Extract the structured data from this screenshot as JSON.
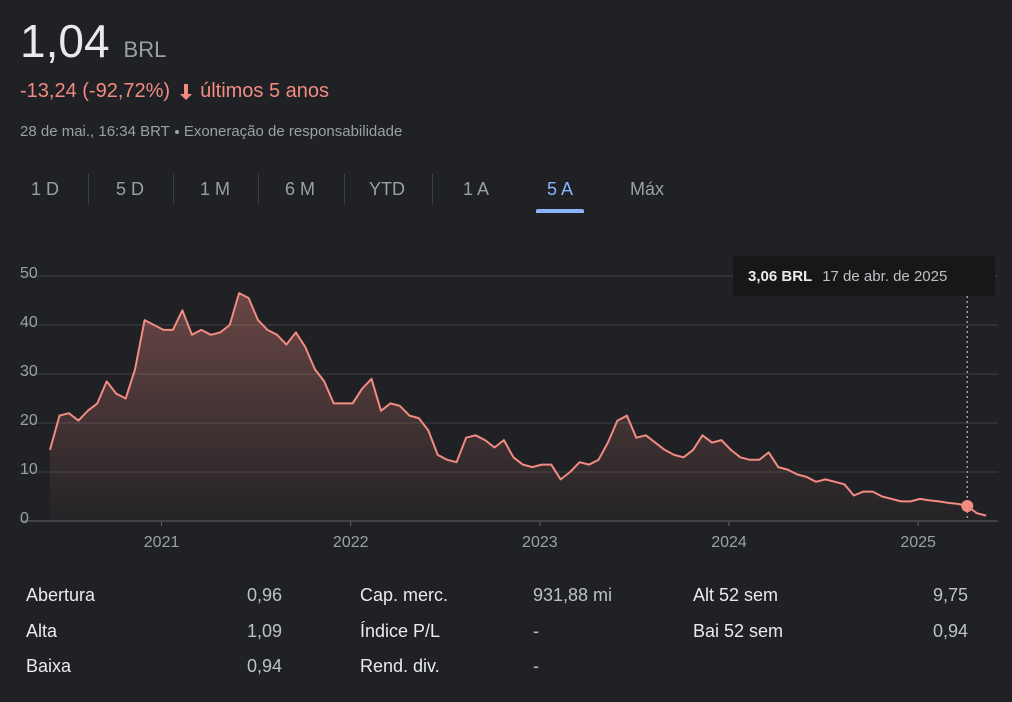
{
  "header": {
    "price": "1,04",
    "currency": "BRL",
    "change": "-13,24 (-92,72%)",
    "period": "últimos 5 anos",
    "timestamp": "28 de mai., 16:34 BRT",
    "disclaimer": "Exoneração de responsabilidade"
  },
  "tabs": [
    "1 D",
    "5 D",
    "1 M",
    "6 M",
    "YTD",
    "1 A",
    "5 A",
    "Máx"
  ],
  "active_tab": "5 A",
  "chart_data": {
    "type": "line",
    "color": "#f28b82",
    "x": [
      2020.41,
      2020.46,
      2020.51,
      2020.56,
      2020.61,
      2020.66,
      2020.71,
      2020.76,
      2020.81,
      2020.86,
      2020.91,
      2020.96,
      2021.01,
      2021.06,
      2021.11,
      2021.16,
      2021.21,
      2021.26,
      2021.31,
      2021.36,
      2021.41,
      2021.46,
      2021.51,
      2021.56,
      2021.61,
      2021.66,
      2021.71,
      2021.76,
      2021.81,
      2021.86,
      2021.91,
      2021.96,
      2022.01,
      2022.06,
      2022.11,
      2022.16,
      2022.21,
      2022.26,
      2022.31,
      2022.36,
      2022.41,
      2022.46,
      2022.51,
      2022.56,
      2022.61,
      2022.66,
      2022.71,
      2022.76,
      2022.81,
      2022.86,
      2022.91,
      2022.96,
      2023.01,
      2023.06,
      2023.11,
      2023.16,
      2023.21,
      2023.26,
      2023.31,
      2023.36,
      2023.41,
      2023.46,
      2023.51,
      2023.56,
      2023.61,
      2023.66,
      2023.71,
      2023.76,
      2023.81,
      2023.86,
      2023.91,
      2023.96,
      2024.01,
      2024.06,
      2024.11,
      2024.16,
      2024.21,
      2024.26,
      2024.31,
      2024.36,
      2024.41,
      2024.46,
      2024.51,
      2024.56,
      2024.61,
      2024.66,
      2024.71,
      2024.76,
      2024.81,
      2024.86,
      2024.91,
      2024.96,
      2025.01,
      2025.06,
      2025.11,
      2025.16,
      2025.21,
      2025.26,
      2025.31,
      2025.36
    ],
    "values": [
      14.5,
      21.5,
      22,
      20.5,
      22.5,
      24,
      28.5,
      26,
      25,
      31,
      41,
      40,
      39,
      39,
      43,
      38,
      39,
      38,
      38.5,
      40,
      46.5,
      45.5,
      41,
      39,
      38,
      36,
      38.5,
      35.5,
      31,
      28.5,
      24,
      24,
      24,
      27,
      29,
      22.5,
      24,
      23.5,
      21.5,
      21,
      18.5,
      13.5,
      12.5,
      12,
      17,
      17.5,
      16.5,
      15,
      16.5,
      13,
      11.5,
      11,
      11.5,
      11.5,
      8.5,
      10,
      12,
      11.5,
      12.5,
      16,
      20.5,
      21.5,
      17,
      17.5,
      16,
      14.5,
      13.5,
      13,
      14.5,
      17.5,
      16,
      16.5,
      14.5,
      13,
      12.5,
      12.5,
      14,
      11,
      10.5,
      9.5,
      9,
      8,
      8.5,
      8,
      7.5,
      5.2,
      6,
      6,
      5,
      4.5,
      4,
      4,
      4.5,
      4.2,
      4,
      3.7,
      3.5,
      3.06,
      1.6,
      1.1
    ],
    "xlim": [
      2020.41,
      2025.38
    ],
    "ylim": [
      0,
      50
    ],
    "xticks": [
      2021,
      2022,
      2023,
      2024,
      2025
    ],
    "yticks": [
      0,
      10,
      20,
      30,
      40,
      50
    ],
    "grid": true,
    "tooltip": {
      "x": 2025.26,
      "value": 3.06,
      "value_label": "3,06 BRL",
      "date": "17 de abr. de 2025"
    }
  },
  "stats": [
    [
      {
        "label": "Abertura",
        "value": "0,96"
      },
      {
        "label": "Alta",
        "value": "1,09"
      },
      {
        "label": "Baixa",
        "value": "0,94"
      }
    ],
    [
      {
        "label": "Cap. merc.",
        "value": "931,88 mi"
      },
      {
        "label": "Índice P/L",
        "value": "-"
      },
      {
        "label": "Rend. div.",
        "value": "-"
      }
    ],
    [
      {
        "label": "Alt 52 sem",
        "value": "9,75"
      },
      {
        "label": "Bai 52 sem",
        "value": "0,94"
      }
    ]
  ]
}
